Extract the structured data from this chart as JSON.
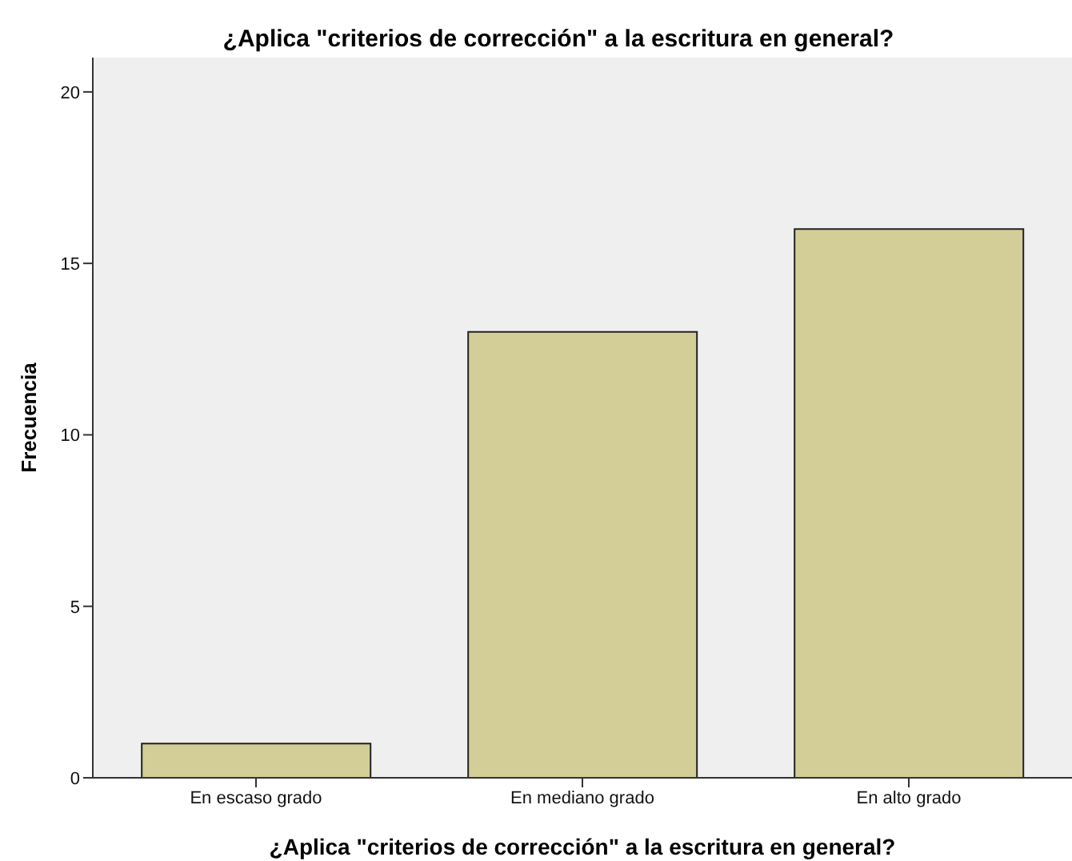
{
  "chart_data": {
    "type": "bar",
    "title": "¿Aplica \"criterios de corrección\" a la escritura en general?",
    "xlabel": "¿Aplica \"criterios de corrección\" a la escritura en general?",
    "ylabel": "Frecuencia",
    "categories": [
      "En escaso grado",
      "En mediano grado",
      "En alto grado"
    ],
    "values": [
      1,
      13,
      16
    ],
    "color": "#d3ce97",
    "ylim": [
      0,
      21
    ],
    "yticks": [
      0,
      5,
      10,
      15,
      20
    ],
    "grid": false,
    "legend": false
  }
}
